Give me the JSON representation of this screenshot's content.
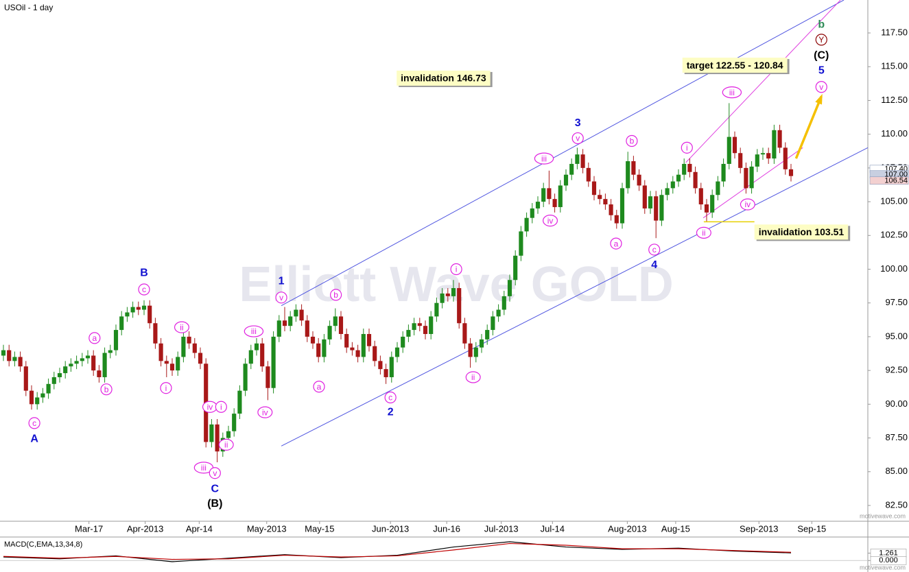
{
  "chart_data": {
    "type": "candlestick",
    "title": "USOil - 1 day",
    "watermark": "Elliott Wave GOLD",
    "credit": "motivewave.com",
    "up_color": "#1e8a1e",
    "down_color": "#a81818",
    "xlim": [
      -0.61,
      153.66
    ],
    "ylim": [
      81.33,
      119.94
    ],
    "xticks": [
      {
        "value": 15.2,
        "label": "Mar-17"
      },
      {
        "value": 25.2,
        "label": "Apr-2013"
      },
      {
        "value": 34.8,
        "label": "Apr-14"
      },
      {
        "value": 46.8,
        "label": "May-2013"
      },
      {
        "value": 56.2,
        "label": "May-15"
      },
      {
        "value": 68.8,
        "label": "Jun-2013"
      },
      {
        "value": 78.8,
        "label": "Jun-16"
      },
      {
        "value": 88.5,
        "label": "Jul-2013"
      },
      {
        "value": 97.6,
        "label": "Jul-14"
      },
      {
        "value": 110.9,
        "label": "Aug-2013"
      },
      {
        "value": 119.5,
        "label": "Aug-15"
      },
      {
        "value": 134.3,
        "label": "Sep-2013"
      },
      {
        "value": 143.7,
        "label": "Sep-15"
      }
    ],
    "yticks": [
      {
        "value": 82.5,
        "label": "82.50"
      },
      {
        "value": 85,
        "label": "85.00"
      },
      {
        "value": 87.5,
        "label": "87.50"
      },
      {
        "value": 90,
        "label": "90.00"
      },
      {
        "value": 92.5,
        "label": "92.50"
      },
      {
        "value": 95,
        "label": "95.00"
      },
      {
        "value": 97.5,
        "label": "97.50"
      },
      {
        "value": 100,
        "label": "100.00"
      },
      {
        "value": 102.5,
        "label": "102.50"
      },
      {
        "value": 105,
        "label": "105.00"
      },
      {
        "value": 107.5,
        "label": "107.50"
      },
      {
        "value": 110,
        "label": "110.00"
      },
      {
        "value": 112.5,
        "label": "112.50"
      },
      {
        "value": 115,
        "label": "115.00"
      },
      {
        "value": 117.5,
        "label": "117.50"
      }
    ],
    "open": [
      93.6,
      94.0,
      93.2,
      93.5,
      92.8,
      91.0,
      90.0,
      90.5,
      90.8,
      91.5,
      92.0,
      92.3,
      92.8,
      93.0,
      93.2,
      93.4,
      93.6,
      92.5,
      92.0,
      93.8,
      94.0,
      95.5,
      96.5,
      96.8,
      97.2,
      97.0,
      97.3,
      96.0,
      94.5,
      93.2,
      93.0,
      92.5,
      93.5,
      95.0,
      94.5,
      93.8,
      93.0,
      87.2,
      88.5,
      86.5,
      87.5,
      88.0,
      89.3,
      91.0,
      93.0,
      94.0,
      94.5,
      92.8,
      91.2,
      95.0,
      96.2,
      95.8,
      96.5,
      97.0,
      96.2,
      95.0,
      94.5,
      93.5,
      94.8,
      95.8,
      96.5,
      95.2,
      94.2,
      94.0,
      93.5,
      95.2,
      94.3,
      93.2,
      92.6,
      92.0,
      93.5,
      94.2,
      95.0,
      95.5,
      96.0,
      95.8,
      95.2,
      96.5,
      97.5,
      98.2,
      98.0,
      98.6,
      96.0,
      94.5,
      93.5,
      94.2,
      94.8,
      95.5,
      96.5,
      97.0,
      98.0,
      99.2,
      101.0,
      102.8,
      103.8,
      104.5,
      105.0,
      106.0,
      105.2,
      104.6,
      106.2,
      107.0,
      107.8,
      108.5,
      107.5,
      106.5,
      105.5,
      105.2,
      104.8,
      104.0,
      103.4,
      106.0,
      108.0,
      107.0,
      106.2,
      104.5,
      105.4,
      103.6,
      105.5,
      106.0,
      106.5,
      107.0,
      107.8,
      107.2,
      106.0,
      104.8,
      104.2,
      105.5,
      106.5,
      107.8,
      109.8,
      108.6,
      107.5,
      106.0,
      107.6,
      108.5,
      108.6,
      108.2,
      110.3,
      109.0,
      107.4
    ],
    "high": [
      94.4,
      94.4,
      93.9,
      93.9,
      93.2,
      91.4,
      90.9,
      91.2,
      91.9,
      92.4,
      92.7,
      93.2,
      93.4,
      93.6,
      93.8,
      94.0,
      94.0,
      92.9,
      94.2,
      94.4,
      95.9,
      96.9,
      97.2,
      97.6,
      97.6,
      97.7,
      97.7,
      96.4,
      94.9,
      93.6,
      93.4,
      93.9,
      95.4,
      95.4,
      94.9,
      94.2,
      93.4,
      88.9,
      88.9,
      87.9,
      88.4,
      89.7,
      91.4,
      93.4,
      94.4,
      94.9,
      94.9,
      93.2,
      95.4,
      96.6,
      97.2,
      96.9,
      97.4,
      97.4,
      96.6,
      95.4,
      94.9,
      95.2,
      96.2,
      97.1,
      96.9,
      95.6,
      94.6,
      94.4,
      95.6,
      95.6,
      94.7,
      93.6,
      93.0,
      93.9,
      94.6,
      95.4,
      95.9,
      96.4,
      96.4,
      96.2,
      96.9,
      97.9,
      98.6,
      98.6,
      99.2,
      99.0,
      96.4,
      94.9,
      94.6,
      95.2,
      95.9,
      96.9,
      97.4,
      98.4,
      99.6,
      101.4,
      103.2,
      104.2,
      104.9,
      105.4,
      106.4,
      107.3,
      105.6,
      106.6,
      107.4,
      108.2,
      109.0,
      108.9,
      107.9,
      106.9,
      105.9,
      105.6,
      105.2,
      104.4,
      106.4,
      108.7,
      108.4,
      107.4,
      106.6,
      105.8,
      105.8,
      105.9,
      106.4,
      106.9,
      107.4,
      108.2,
      108.2,
      107.6,
      106.4,
      105.2,
      105.9,
      106.9,
      108.2,
      112.3,
      110.2,
      109.0,
      107.9,
      108.0,
      108.9,
      109.0,
      109.0,
      110.7,
      110.7,
      109.4,
      107.8
    ],
    "low": [
      93.2,
      92.8,
      92.8,
      92.4,
      90.6,
      89.6,
      89.6,
      90.1,
      90.4,
      91.1,
      91.6,
      91.9,
      92.4,
      92.6,
      92.8,
      93.0,
      92.1,
      91.6,
      91.6,
      93.4,
      93.6,
      95.1,
      96.1,
      96.4,
      96.6,
      96.6,
      95.6,
      94.1,
      92.8,
      92.0,
      92.1,
      92.1,
      93.1,
      94.1,
      93.4,
      92.6,
      86.8,
      86.8,
      85.7,
      86.1,
      87.1,
      87.6,
      88.9,
      90.6,
      92.6,
      93.6,
      92.4,
      90.3,
      90.8,
      94.6,
      95.4,
      95.4,
      96.1,
      95.8,
      94.6,
      94.1,
      93.1,
      93.1,
      94.4,
      95.4,
      94.8,
      93.8,
      93.6,
      93.1,
      93.1,
      93.9,
      92.8,
      92.2,
      91.5,
      91.6,
      93.1,
      93.8,
      94.6,
      95.1,
      95.4,
      94.8,
      94.8,
      96.1,
      97.1,
      97.6,
      97.6,
      95.6,
      94.1,
      92.7,
      93.1,
      93.8,
      94.4,
      95.1,
      96.1,
      96.6,
      97.6,
      98.8,
      100.6,
      102.4,
      103.4,
      104.1,
      104.6,
      104.8,
      104.2,
      104.2,
      105.8,
      106.6,
      107.4,
      107.1,
      106.1,
      105.1,
      104.8,
      104.4,
      103.6,
      103.0,
      103.0,
      105.6,
      106.6,
      105.8,
      104.1,
      104.1,
      102.3,
      103.2,
      105.1,
      105.6,
      106.1,
      106.6,
      106.8,
      105.6,
      104.4,
      103.5,
      103.8,
      105.1,
      106.1,
      107.4,
      108.2,
      107.1,
      105.6,
      105.6,
      107.2,
      108.1,
      107.8,
      107.8,
      108.6,
      107.0,
      106.5
    ],
    "close": [
      94.0,
      93.2,
      93.5,
      92.8,
      91.0,
      90.0,
      90.5,
      90.8,
      91.5,
      92.0,
      92.3,
      92.8,
      93.0,
      93.2,
      93.4,
      93.6,
      92.5,
      92.0,
      93.8,
      94.0,
      95.5,
      96.5,
      96.8,
      97.2,
      97.0,
      97.3,
      96.0,
      94.5,
      93.2,
      93.0,
      92.5,
      93.5,
      95.0,
      94.5,
      93.8,
      93.0,
      87.2,
      88.5,
      86.5,
      87.5,
      88.0,
      89.3,
      91.0,
      93.0,
      94.0,
      94.5,
      92.8,
      91.2,
      95.0,
      96.2,
      95.8,
      96.5,
      97.0,
      96.2,
      95.0,
      94.5,
      93.5,
      94.8,
      95.8,
      96.5,
      95.2,
      94.2,
      94.0,
      93.5,
      95.2,
      94.3,
      93.2,
      92.6,
      92.0,
      93.5,
      94.2,
      95.0,
      95.5,
      96.0,
      95.8,
      95.2,
      96.5,
      97.5,
      98.2,
      98.0,
      98.6,
      96.0,
      94.5,
      93.5,
      94.2,
      94.8,
      95.5,
      96.5,
      97.0,
      98.0,
      99.2,
      101.0,
      102.8,
      103.8,
      104.5,
      105.0,
      106.0,
      105.2,
      104.6,
      106.2,
      107.0,
      107.8,
      108.5,
      107.5,
      106.5,
      105.5,
      105.2,
      104.8,
      104.0,
      103.4,
      106.0,
      108.0,
      107.0,
      106.2,
      104.5,
      105.4,
      103.6,
      105.5,
      106.0,
      106.5,
      107.0,
      107.8,
      107.2,
      106.0,
      104.8,
      104.2,
      105.5,
      106.5,
      107.8,
      109.8,
      108.6,
      107.5,
      106.0,
      107.6,
      108.5,
      108.6,
      108.2,
      110.3,
      109.0,
      107.4,
      106.9
    ],
    "price_tags": [
      {
        "value": 107.4,
        "label": "107.40",
        "color": "#ffffff"
      },
      {
        "value": 107.0,
        "label": "107.00",
        "color": "#c8cfe0"
      },
      {
        "value": 106.54,
        "label": "106.54",
        "color": "#f3d0d0"
      }
    ],
    "trendlines": [
      {
        "color": "#4f55e0",
        "points": [
          [
            49.4,
            97.3
          ],
          [
            149.4,
            119.94
          ]
        ]
      },
      {
        "color": "#4f55e0",
        "points": [
          [
            49.4,
            86.9
          ],
          [
            153.66,
            109.0
          ]
        ]
      },
      {
        "color": "#e040e0",
        "points": [
          [
            121.3,
            107.9
          ],
          [
            148.8,
            119.94
          ]
        ]
      },
      {
        "color": "#e040e0",
        "points": [
          [
            124.4,
            103.8
          ],
          [
            142.1,
            109.0
          ]
        ]
      }
    ],
    "arrow": {
      "color": "#f5c000",
      "points": [
        [
          140.9,
          108.2
        ],
        [
          145.4,
          112.8
        ]
      ]
    },
    "level": {
      "value": 103.51,
      "from": 124.5,
      "to": 133.5,
      "color": "#e8d000"
    },
    "callouts": [
      {
        "text": "invalidation 146.73",
        "x": 69.9,
        "y": 114.1
      },
      {
        "text": "target 122.55 - 120.84",
        "x": 120.7,
        "y": 115.06
      },
      {
        "text": "invalidation 103.51",
        "x": 133.5,
        "y": 102.7
      }
    ],
    "waves": [
      {
        "text": "c",
        "x": 5.5,
        "y": 88.6,
        "color": "#e020e0",
        "circled": true
      },
      {
        "text": "A",
        "x": 5.5,
        "y": 87.4,
        "color": "#1010d0",
        "circled": false
      },
      {
        "text": "a",
        "x": 16.2,
        "y": 94.9,
        "color": "#e020e0",
        "circled": true
      },
      {
        "text": "b",
        "x": 18.3,
        "y": 91.1,
        "color": "#e020e0",
        "circled": true
      },
      {
        "text": "B",
        "x": 25,
        "y": 99.7,
        "color": "#1010d0",
        "circled": false
      },
      {
        "text": "c",
        "x": 25,
        "y": 98.5,
        "color": "#e020e0",
        "circled": true
      },
      {
        "text": "ii",
        "x": 31.7,
        "y": 95.7,
        "color": "#e020e0",
        "circled": true
      },
      {
        "text": "i",
        "x": 28.9,
        "y": 91.2,
        "color": "#e020e0",
        "circled": true
      },
      {
        "text": "iv",
        "x": 36.7,
        "y": 89.8,
        "color": "#e020e0",
        "circled": true
      },
      {
        "text": "i",
        "x": 38.7,
        "y": 89.8,
        "color": "#e020e0",
        "circled": true
      },
      {
        "text": "iii",
        "x": 35.6,
        "y": 85.3,
        "color": "#e020e0",
        "circled": true
      },
      {
        "text": "v",
        "x": 37.6,
        "y": 84.9,
        "color": "#e020e0",
        "circled": true
      },
      {
        "text": "ii",
        "x": 39.6,
        "y": 87.0,
        "color": "#e020e0",
        "circled": true
      },
      {
        "text": "C",
        "x": 37.6,
        "y": 83.7,
        "color": "#1010d0",
        "circled": false
      },
      {
        "text": "(B)",
        "x": 37.6,
        "y": 82.6,
        "color": "#000000",
        "circled": false
      },
      {
        "text": "iii",
        "x": 44.5,
        "y": 95.4,
        "color": "#e020e0",
        "circled": true
      },
      {
        "text": "iv",
        "x": 46.5,
        "y": 89.4,
        "color": "#e020e0",
        "circled": true
      },
      {
        "text": "1",
        "x": 49.4,
        "y": 99.1,
        "color": "#1010d0",
        "circled": false
      },
      {
        "text": "v",
        "x": 49.4,
        "y": 97.9,
        "color": "#e020e0",
        "circled": true
      },
      {
        "text": "b",
        "x": 59.1,
        "y": 98.1,
        "color": "#e020e0",
        "circled": true
      },
      {
        "text": "a",
        "x": 56.1,
        "y": 91.3,
        "color": "#e020e0",
        "circled": true
      },
      {
        "text": "c",
        "x": 68.8,
        "y": 90.5,
        "color": "#e020e0",
        "circled": true
      },
      {
        "text": "2",
        "x": 68.8,
        "y": 89.4,
        "color": "#1010d0",
        "circled": false
      },
      {
        "text": "i",
        "x": 80.5,
        "y": 100.0,
        "color": "#e020e0",
        "circled": true
      },
      {
        "text": "ii",
        "x": 83.5,
        "y": 92.0,
        "color": "#e020e0",
        "circled": true
      },
      {
        "text": "iii",
        "x": 96.1,
        "y": 108.2,
        "color": "#e020e0",
        "circled": true
      },
      {
        "text": "iv",
        "x": 97.2,
        "y": 103.6,
        "color": "#e020e0",
        "circled": true
      },
      {
        "text": "3",
        "x": 102.1,
        "y": 110.8,
        "color": "#1010d0",
        "circled": false
      },
      {
        "text": "v",
        "x": 102.1,
        "y": 109.7,
        "color": "#e020e0",
        "circled": true
      },
      {
        "text": "b",
        "x": 111.7,
        "y": 109.5,
        "color": "#e020e0",
        "circled": true
      },
      {
        "text": "a",
        "x": 108.9,
        "y": 101.9,
        "color": "#e020e0",
        "circled": true
      },
      {
        "text": "c",
        "x": 115.7,
        "y": 101.45,
        "color": "#e020e0",
        "circled": true
      },
      {
        "text": "4",
        "x": 115.7,
        "y": 100.3,
        "color": "#1010d0",
        "circled": false
      },
      {
        "text": "i",
        "x": 121.5,
        "y": 109.0,
        "color": "#e020e0",
        "circled": true
      },
      {
        "text": "ii",
        "x": 124.5,
        "y": 102.7,
        "color": "#e020e0",
        "circled": true
      },
      {
        "text": "iii",
        "x": 129.5,
        "y": 113.1,
        "color": "#e020e0",
        "circled": true
      },
      {
        "text": "iv",
        "x": 132.3,
        "y": 104.8,
        "color": "#e020e0",
        "circled": true
      },
      {
        "text": "v",
        "x": 145.4,
        "y": 113.5,
        "color": "#e020e0",
        "circled": true
      },
      {
        "text": "5",
        "x": 145.4,
        "y": 114.7,
        "color": "#1010d0",
        "circled": false
      },
      {
        "text": "(C)",
        "x": 145.4,
        "y": 115.8,
        "color": "#000000",
        "circled": false
      },
      {
        "text": "Y",
        "x": 145.4,
        "y": 117.0,
        "color": "#8b0000",
        "circled": true
      },
      {
        "text": "b",
        "x": 145.4,
        "y": 118.1,
        "color": "#2e8b57",
        "circled": false
      }
    ],
    "macd": {
      "title": "MACD(C,EMA,13,34,8)",
      "ylim": [
        -1.95,
        4.0
      ],
      "yticks": [
        {
          "value": 1.261,
          "label": "1.261"
        },
        {
          "value": 0,
          "label": "0.000"
        }
      ],
      "x": [
        0,
        10,
        20,
        30,
        40,
        50,
        60,
        70,
        80,
        90,
        100,
        110,
        120,
        130,
        140
      ],
      "series": [
        {
          "color": "#000000",
          "values": [
            0.6,
            0.3,
            0.8,
            -0.2,
            0.4,
            1.0,
            0.5,
            0.9,
            2.3,
            3.2,
            2.3,
            1.9,
            2.1,
            1.6,
            1.3
          ]
        },
        {
          "color": "#c00000",
          "values": [
            0.7,
            0.4,
            0.7,
            0.2,
            0.3,
            0.9,
            0.6,
            0.8,
            1.8,
            2.9,
            2.6,
            2.0,
            2.0,
            1.7,
            1.4
          ]
        }
      ]
    }
  }
}
